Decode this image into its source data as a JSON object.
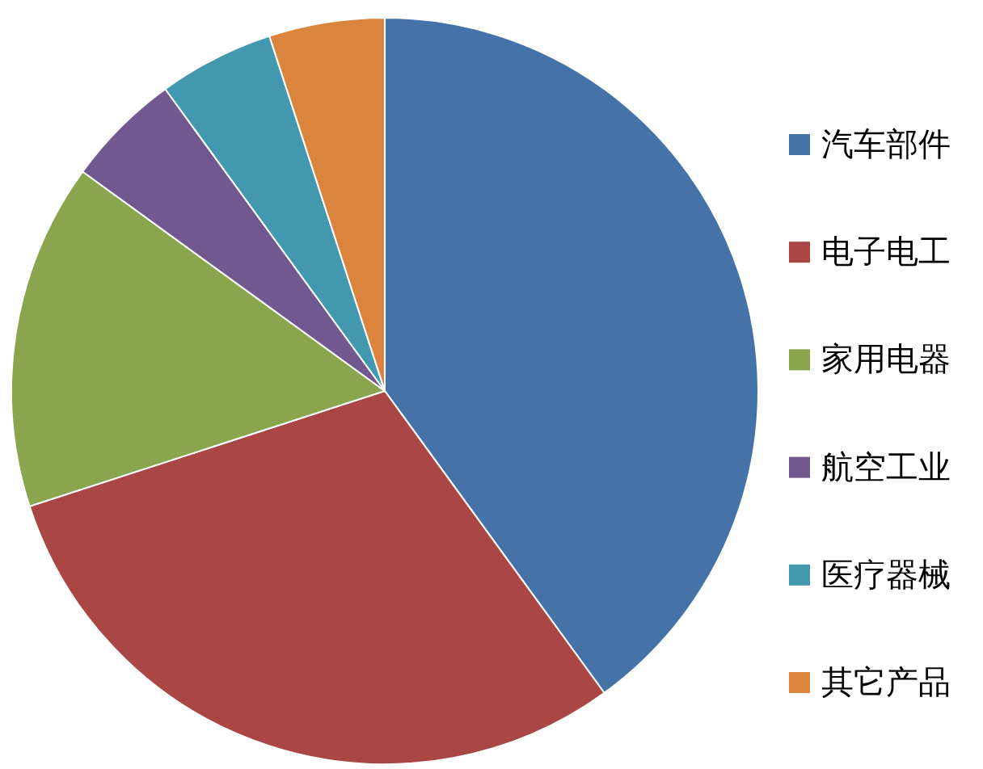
{
  "chart_data": {
    "type": "pie",
    "categories": [
      "汽车部件",
      "电子电工",
      "家用电器",
      "航空工业",
      "医疗器械",
      "其它产品"
    ],
    "values": [
      40,
      30,
      15,
      5,
      5,
      5
    ],
    "colors": [
      "#4572a7",
      "#aa4643",
      "#89a54e",
      "#71588f",
      "#4198af",
      "#db843d"
    ],
    "legend": "right"
  }
}
